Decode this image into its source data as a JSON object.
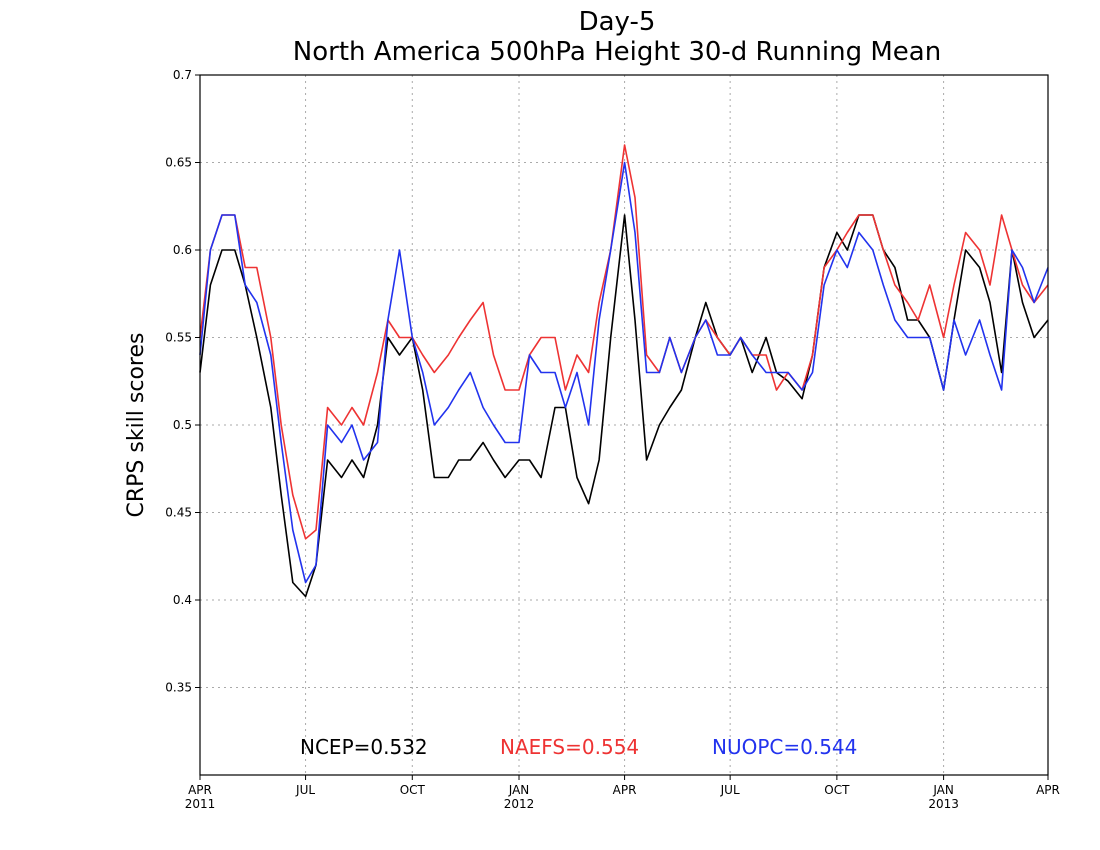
{
  "chart_data": {
    "type": "line",
    "title": "Day-5",
    "subtitle": "North America 500hPa Height 30-d Running Mean",
    "ylabel": "CRPS skill scores",
    "xlabel": "",
    "ylim": [
      0.3,
      0.7
    ],
    "yticks": [
      0.35,
      0.4,
      0.45,
      0.5,
      0.55,
      0.6,
      0.65,
      0.7
    ],
    "xlim": [
      "2011-04-01",
      "2013-04-01"
    ],
    "xticks": [
      {
        "date": "2011-04-01",
        "label": "APR",
        "year": "2011"
      },
      {
        "date": "2011-07-01",
        "label": "JUL",
        "year": ""
      },
      {
        "date": "2011-10-01",
        "label": "OCT",
        "year": ""
      },
      {
        "date": "2012-01-01",
        "label": "JAN",
        "year": "2012"
      },
      {
        "date": "2012-04-01",
        "label": "APR",
        "year": ""
      },
      {
        "date": "2012-07-01",
        "label": "JUL",
        "year": ""
      },
      {
        "date": "2012-10-01",
        "label": "OCT",
        "year": ""
      },
      {
        "date": "2013-01-01",
        "label": "JAN",
        "year": "2013"
      },
      {
        "date": "2013-04-01",
        "label": "APR",
        "year": ""
      }
    ],
    "grid": true,
    "legend_position": "bottom",
    "series": [
      {
        "name": "NCEP",
        "mean_label": "NCEP=0.532",
        "color": "#000000",
        "x": [
          "2011-04-01",
          "2011-04-10",
          "2011-04-20",
          "2011-05-01",
          "2011-05-10",
          "2011-05-20",
          "2011-06-01",
          "2011-06-10",
          "2011-06-20",
          "2011-07-01",
          "2011-07-10",
          "2011-07-20",
          "2011-08-01",
          "2011-08-10",
          "2011-08-20",
          "2011-09-01",
          "2011-09-10",
          "2011-09-20",
          "2011-10-01",
          "2011-10-10",
          "2011-10-20",
          "2011-11-01",
          "2011-11-10",
          "2011-11-20",
          "2011-12-01",
          "2011-12-10",
          "2011-12-20",
          "2012-01-01",
          "2012-01-10",
          "2012-01-20",
          "2012-02-01",
          "2012-02-10",
          "2012-02-20",
          "2012-03-01",
          "2012-03-10",
          "2012-03-20",
          "2012-04-01",
          "2012-04-10",
          "2012-04-20",
          "2012-05-01",
          "2012-05-10",
          "2012-05-20",
          "2012-06-01",
          "2012-06-10",
          "2012-06-20",
          "2012-07-01",
          "2012-07-10",
          "2012-07-20",
          "2012-08-01",
          "2012-08-10",
          "2012-08-20",
          "2012-09-01",
          "2012-09-10",
          "2012-09-20",
          "2012-10-01",
          "2012-10-10",
          "2012-10-20",
          "2012-11-01",
          "2012-11-10",
          "2012-11-20",
          "2012-12-01",
          "2012-12-10",
          "2012-12-20",
          "2013-01-01",
          "2013-01-10",
          "2013-01-20",
          "2013-02-01",
          "2013-02-10",
          "2013-02-20",
          "2013-03-01",
          "2013-03-10",
          "2013-03-20",
          "2013-04-01"
        ],
        "values": [
          0.53,
          0.58,
          0.6,
          0.6,
          0.58,
          0.55,
          0.51,
          0.46,
          0.41,
          0.402,
          0.42,
          0.48,
          0.47,
          0.48,
          0.47,
          0.5,
          0.55,
          0.54,
          0.55,
          0.52,
          0.47,
          0.47,
          0.48,
          0.48,
          0.49,
          0.48,
          0.47,
          0.48,
          0.48,
          0.47,
          0.51,
          0.51,
          0.47,
          0.455,
          0.48,
          0.55,
          0.62,
          0.56,
          0.48,
          0.5,
          0.51,
          0.52,
          0.55,
          0.57,
          0.55,
          0.54,
          0.55,
          0.53,
          0.55,
          0.53,
          0.525,
          0.515,
          0.54,
          0.59,
          0.61,
          0.6,
          0.62,
          0.62,
          0.6,
          0.59,
          0.56,
          0.56,
          0.55,
          0.52,
          0.56,
          0.6,
          0.59,
          0.57,
          0.53,
          0.6,
          0.57,
          0.55,
          0.56
        ]
      },
      {
        "name": "NAEFS",
        "mean_label": "NAEFS=0.554",
        "color": "#ee3333",
        "x": [
          "2011-04-01",
          "2011-04-10",
          "2011-04-20",
          "2011-05-01",
          "2011-05-10",
          "2011-05-20",
          "2011-06-01",
          "2011-06-10",
          "2011-06-20",
          "2011-07-01",
          "2011-07-10",
          "2011-07-20",
          "2011-08-01",
          "2011-08-10",
          "2011-08-20",
          "2011-09-01",
          "2011-09-10",
          "2011-09-20",
          "2011-10-01",
          "2011-10-10",
          "2011-10-20",
          "2011-11-01",
          "2011-11-10",
          "2011-11-20",
          "2011-12-01",
          "2011-12-10",
          "2011-12-20",
          "2012-01-01",
          "2012-01-10",
          "2012-01-20",
          "2012-02-01",
          "2012-02-10",
          "2012-02-20",
          "2012-03-01",
          "2012-03-10",
          "2012-03-20",
          "2012-04-01",
          "2012-04-10",
          "2012-04-20",
          "2012-05-01",
          "2012-05-10",
          "2012-05-20",
          "2012-06-01",
          "2012-06-10",
          "2012-06-20",
          "2012-07-01",
          "2012-07-10",
          "2012-07-20",
          "2012-08-01",
          "2012-08-10",
          "2012-08-20",
          "2012-09-01",
          "2012-09-10",
          "2012-09-20",
          "2012-10-01",
          "2012-10-10",
          "2012-10-20",
          "2012-11-01",
          "2012-11-10",
          "2012-11-20",
          "2012-12-01",
          "2012-12-10",
          "2012-12-20",
          "2013-01-01",
          "2013-01-10",
          "2013-01-20",
          "2013-02-01",
          "2013-02-10",
          "2013-02-20",
          "2013-03-01",
          "2013-03-10",
          "2013-03-20",
          "2013-04-01"
        ],
        "values": [
          0.55,
          0.6,
          0.62,
          0.62,
          0.59,
          0.59,
          0.55,
          0.5,
          0.46,
          0.435,
          0.44,
          0.51,
          0.5,
          0.51,
          0.5,
          0.53,
          0.56,
          0.55,
          0.55,
          0.54,
          0.53,
          0.54,
          0.55,
          0.56,
          0.57,
          0.54,
          0.52,
          0.52,
          0.54,
          0.55,
          0.55,
          0.52,
          0.54,
          0.53,
          0.57,
          0.6,
          0.66,
          0.63,
          0.54,
          0.53,
          0.55,
          0.53,
          0.55,
          0.56,
          0.55,
          0.54,
          0.55,
          0.54,
          0.54,
          0.52,
          0.53,
          0.52,
          0.54,
          0.59,
          0.6,
          0.61,
          0.62,
          0.62,
          0.6,
          0.58,
          0.57,
          0.56,
          0.58,
          0.55,
          0.58,
          0.61,
          0.6,
          0.58,
          0.62,
          0.6,
          0.58,
          0.57,
          0.58
        ]
      },
      {
        "name": "NUOPC",
        "mean_label": "NUOPC=0.544",
        "color": "#2233ee",
        "x": [
          "2011-04-01",
          "2011-04-10",
          "2011-04-20",
          "2011-05-01",
          "2011-05-10",
          "2011-05-20",
          "2011-06-01",
          "2011-06-10",
          "2011-06-20",
          "2011-07-01",
          "2011-07-10",
          "2011-07-20",
          "2011-08-01",
          "2011-08-10",
          "2011-08-20",
          "2011-09-01",
          "2011-09-10",
          "2011-09-20",
          "2011-10-01",
          "2011-10-10",
          "2011-10-20",
          "2011-11-01",
          "2011-11-10",
          "2011-11-20",
          "2011-12-01",
          "2011-12-10",
          "2011-12-20",
          "2012-01-01",
          "2012-01-10",
          "2012-01-20",
          "2012-02-01",
          "2012-02-10",
          "2012-02-20",
          "2012-03-01",
          "2012-03-10",
          "2012-03-20",
          "2012-04-01",
          "2012-04-10",
          "2012-04-20",
          "2012-05-01",
          "2012-05-10",
          "2012-05-20",
          "2012-06-01",
          "2012-06-10",
          "2012-06-20",
          "2012-07-01",
          "2012-07-10",
          "2012-07-20",
          "2012-08-01",
          "2012-08-10",
          "2012-08-20",
          "2012-09-01",
          "2012-09-10",
          "2012-09-20",
          "2012-10-01",
          "2012-10-10",
          "2012-10-20",
          "2012-11-01",
          "2012-11-10",
          "2012-11-20",
          "2012-12-01",
          "2012-12-10",
          "2012-12-20",
          "2013-01-01",
          "2013-01-10",
          "2013-01-20",
          "2013-02-01",
          "2013-02-10",
          "2013-02-20",
          "2013-03-01",
          "2013-03-10",
          "2013-03-20",
          "2013-04-01"
        ],
        "values": [
          0.54,
          0.6,
          0.62,
          0.62,
          0.58,
          0.57,
          0.54,
          0.49,
          0.44,
          0.41,
          0.42,
          0.5,
          0.49,
          0.5,
          0.48,
          0.49,
          0.56,
          0.6,
          0.55,
          0.53,
          0.5,
          0.51,
          0.52,
          0.53,
          0.51,
          0.5,
          0.49,
          0.49,
          0.54,
          0.53,
          0.53,
          0.51,
          0.53,
          0.5,
          0.56,
          0.6,
          0.65,
          0.61,
          0.53,
          0.53,
          0.55,
          0.53,
          0.55,
          0.56,
          0.54,
          0.54,
          0.55,
          0.54,
          0.53,
          0.53,
          0.53,
          0.52,
          0.53,
          0.58,
          0.6,
          0.59,
          0.61,
          0.6,
          0.58,
          0.56,
          0.55,
          0.55,
          0.55,
          0.52,
          0.56,
          0.54,
          0.56,
          0.54,
          0.52,
          0.6,
          0.59,
          0.57,
          0.59
        ]
      }
    ]
  }
}
